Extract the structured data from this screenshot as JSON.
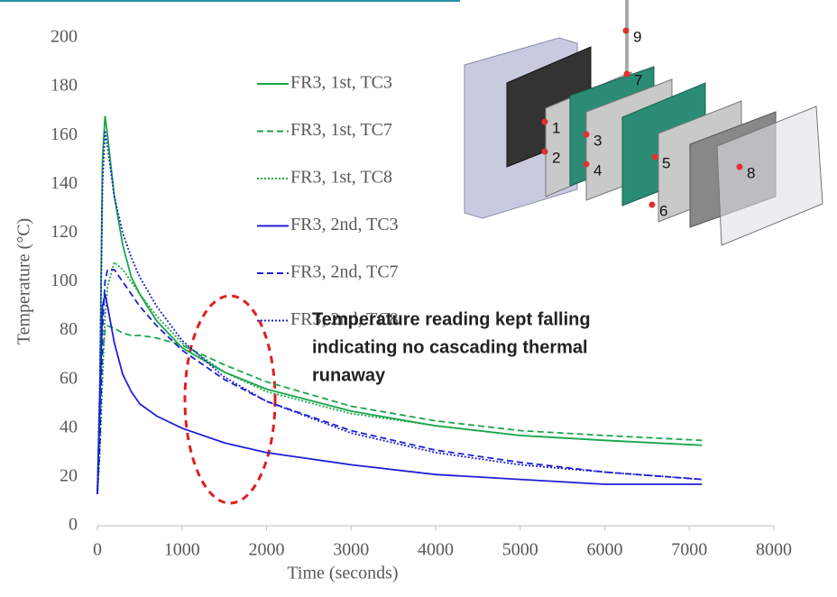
{
  "chart_data": {
    "type": "line",
    "xlabel": "Time (seconds)",
    "ylabel": "Temperature (°C)",
    "xlim": [
      0,
      8000
    ],
    "xticks": [
      0,
      1000,
      2000,
      3000,
      4000,
      5000,
      6000,
      7000,
      8000
    ],
    "ylim": [
      0,
      200
    ],
    "yticks": [
      0,
      20,
      40,
      60,
      80,
      100,
      120,
      140,
      160,
      180,
      200
    ],
    "x": [
      0,
      30,
      60,
      90,
      120,
      200,
      300,
      400,
      500,
      700,
      1000,
      1500,
      2000,
      3000,
      4000,
      5000,
      6000,
      7150
    ],
    "series": [
      {
        "name": "FR3, 1st, TC3",
        "color": "#1aa64a",
        "dash": "solid",
        "values": [
          13,
          60,
          150,
          168,
          160,
          135,
          115,
          102,
          95,
          84,
          73,
          63,
          56,
          47,
          41,
          37,
          35,
          33
        ]
      },
      {
        "name": "FR3, 1st, TC7",
        "color": "#1aa64a",
        "dash": "dashed",
        "values": [
          13,
          40,
          70,
          80,
          82,
          81,
          79,
          78,
          78,
          77,
          74,
          66,
          59,
          49,
          43,
          39,
          37,
          35
        ]
      },
      {
        "name": "FR3, 1st, TC8",
        "color": "#1aa64a",
        "dash": "dotted",
        "values": [
          13,
          30,
          60,
          85,
          98,
          108,
          105,
          100,
          95,
          86,
          75,
          63,
          55,
          46,
          41,
          37,
          35,
          33
        ]
      },
      {
        "name": "FR3, 2nd, TC3",
        "color": "#1f1fd6",
        "dash": "solid",
        "values": [
          13,
          50,
          90,
          95,
          90,
          75,
          62,
          55,
          50,
          45,
          40,
          34,
          30,
          25,
          21,
          19,
          17,
          17
        ]
      },
      {
        "name": "FR3, 2nd, TC7",
        "color": "#1f1fd6",
        "dash": "dashed",
        "values": [
          13,
          35,
          80,
          100,
          105,
          105,
          100,
          95,
          90,
          82,
          72,
          60,
          51,
          39,
          31,
          26,
          22,
          19
        ]
      },
      {
        "name": "FR3, 2nd, TC8",
        "color": "#1f1fd6",
        "dash": "dotted",
        "values": [
          13,
          60,
          140,
          162,
          155,
          135,
          120,
          110,
          102,
          90,
          76,
          61,
          51,
          38,
          30,
          25,
          22,
          19
        ]
      }
    ],
    "annotation": [
      "Temperature reading kept falling",
      "indicating no cascading thermal",
      "runaway"
    ],
    "inset_labels": [
      "9",
      "7",
      "1",
      "2",
      "3",
      "4",
      "5",
      "6",
      "8"
    ]
  }
}
